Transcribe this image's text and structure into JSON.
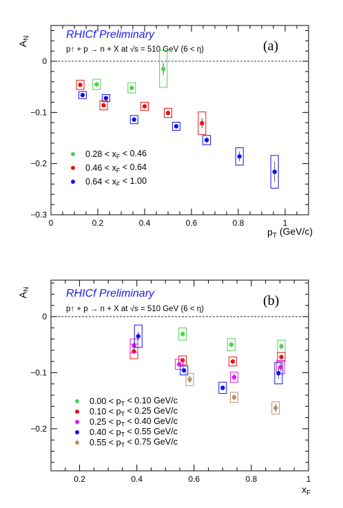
{
  "chart_data": [
    {
      "type": "scatter",
      "panel_label": "(a)",
      "preliminary_label": "RHICf Preliminary",
      "reaction_label": "p↑ + p → n + X at √s = 510 GeV (6 < η)",
      "ylabel": "A_N",
      "xlabel": "p_T (GeV/c)",
      "xlim": [
        0,
        1.1
      ],
      "ylim": [
        -0.3,
        0.07
      ],
      "xticks": [
        0,
        0.2,
        0.4,
        0.6,
        0.8,
        1
      ],
      "xtick_labels": [
        "0",
        "0.2",
        "0.4",
        "0.6",
        "0.8",
        "1"
      ],
      "yticks": [
        -0.3,
        -0.2,
        -0.1,
        0
      ],
      "ytick_labels": [
        "−0.3",
        "−0.2",
        "−0.1",
        "0"
      ],
      "zero_line": true,
      "legend_position": "bottom-left",
      "series": [
        {
          "name": "0.28 < x_F < 0.46",
          "color": "#4fcf4f",
          "points": [
            {
              "x": 0.195,
              "y": -0.045,
              "err": 0.004,
              "syst": 0.01
            },
            {
              "x": 0.345,
              "y": -0.052,
              "err": 0.004,
              "syst": 0.01
            },
            {
              "x": 0.48,
              "y": -0.015,
              "err": 0.012,
              "syst": 0.036
            }
          ]
        },
        {
          "name": "0.46 < x_F < 0.64",
          "color": "#ee1111",
          "points": [
            {
              "x": 0.125,
              "y": -0.046,
              "err": 0.003,
              "syst": 0.009
            },
            {
              "x": 0.225,
              "y": -0.086,
              "err": 0.004,
              "syst": 0.009
            },
            {
              "x": 0.4,
              "y": -0.088,
              "err": 0.004,
              "syst": 0.008
            },
            {
              "x": 0.5,
              "y": -0.101,
              "err": 0.005,
              "syst": 0.009
            },
            {
              "x": 0.645,
              "y": -0.121,
              "err": 0.01,
              "syst": 0.022
            }
          ]
        },
        {
          "name": "0.64 < x_F < 1.00",
          "color": "#1010ee",
          "points": [
            {
              "x": 0.135,
              "y": -0.066,
              "err": 0.003,
              "syst": 0.007
            },
            {
              "x": 0.235,
              "y": -0.072,
              "err": 0.003,
              "syst": 0.007
            },
            {
              "x": 0.355,
              "y": -0.114,
              "err": 0.004,
              "syst": 0.008
            },
            {
              "x": 0.535,
              "y": -0.127,
              "err": 0.004,
              "syst": 0.008
            },
            {
              "x": 0.665,
              "y": -0.154,
              "err": 0.006,
              "syst": 0.009
            },
            {
              "x": 0.805,
              "y": -0.186,
              "err": 0.01,
              "syst": 0.017
            },
            {
              "x": 0.955,
              "y": -0.216,
              "err": 0.02,
              "syst": 0.032
            }
          ]
        }
      ]
    },
    {
      "type": "scatter",
      "panel_label": "(b)",
      "preliminary_label": "RHICf Preliminary",
      "reaction_label": "p↑ + p → n + X at √s = 510 GeV (6 < η)",
      "ylabel": "A_N",
      "xlabel": "x_F",
      "xlim": [
        0.1,
        1.0
      ],
      "ylim": [
        -0.275,
        0.065
      ],
      "xticks": [
        0.2,
        0.4,
        0.6,
        0.8,
        1
      ],
      "xtick_labels": [
        "0.2",
        "0.4",
        "0.6",
        "0.8",
        "1"
      ],
      "yticks": [
        -0.2,
        -0.1,
        0
      ],
      "ytick_labels": [
        "−0.2",
        "−0.1",
        "0"
      ],
      "zero_line": true,
      "legend_position": "bottom-left",
      "series": [
        {
          "name": "0.00 < p_T < 0.10 GeV/c",
          "color": "#4fcf4f",
          "points": [
            {
              "x": 0.56,
              "y": -0.031,
              "err": 0.004,
              "syst": 0.011
            },
            {
              "x": 0.73,
              "y": -0.05,
              "err": 0.004,
              "syst": 0.011
            },
            {
              "x": 0.905,
              "y": -0.053,
              "err": 0.005,
              "syst": 0.011
            }
          ]
        },
        {
          "name": "0.10 < p_T < 0.25 GeV/c",
          "color": "#ee1111",
          "points": [
            {
              "x": 0.39,
              "y": -0.062,
              "err": 0.005,
              "syst": 0.013
            },
            {
              "x": 0.56,
              "y": -0.078,
              "err": 0.004,
              "syst": 0.008
            },
            {
              "x": 0.735,
              "y": -0.08,
              "err": 0.004,
              "syst": 0.008
            },
            {
              "x": 0.905,
              "y": -0.072,
              "err": 0.004,
              "syst": 0.008
            }
          ]
        },
        {
          "name": "0.25 < p_T < 0.40 GeV/c",
          "color": "#ee11ee",
          "points": [
            {
              "x": 0.39,
              "y": -0.052,
              "err": 0.006,
              "syst": 0.012
            },
            {
              "x": 0.548,
              "y": -0.085,
              "err": 0.004,
              "syst": 0.009
            },
            {
              "x": 0.74,
              "y": -0.108,
              "err": 0.006,
              "syst": 0.009
            },
            {
              "x": 0.902,
              "y": -0.09,
              "err": 0.007,
              "syst": 0.012
            }
          ]
        },
        {
          "name": "0.40 < p_T < 0.55 GeV/c",
          "color": "#1010ee",
          "points": [
            {
              "x": 0.405,
              "y": -0.035,
              "err": 0.008,
              "syst": 0.02
            },
            {
              "x": 0.565,
              "y": -0.096,
              "err": 0.004,
              "syst": 0.008
            },
            {
              "x": 0.7,
              "y": -0.127,
              "err": 0.005,
              "syst": 0.01
            },
            {
              "x": 0.895,
              "y": -0.101,
              "err": 0.01,
              "syst": 0.019
            }
          ]
        },
        {
          "name": "0.55 < p_T < 0.75 GeV/c",
          "color": "#b8926e",
          "points": [
            {
              "x": 0.585,
              "y": -0.112,
              "err": 0.006,
              "syst": 0.011
            },
            {
              "x": 0.74,
              "y": -0.144,
              "err": 0.005,
              "syst": 0.009
            },
            {
              "x": 0.885,
              "y": -0.163,
              "err": 0.007,
              "syst": 0.011
            }
          ]
        }
      ]
    }
  ]
}
